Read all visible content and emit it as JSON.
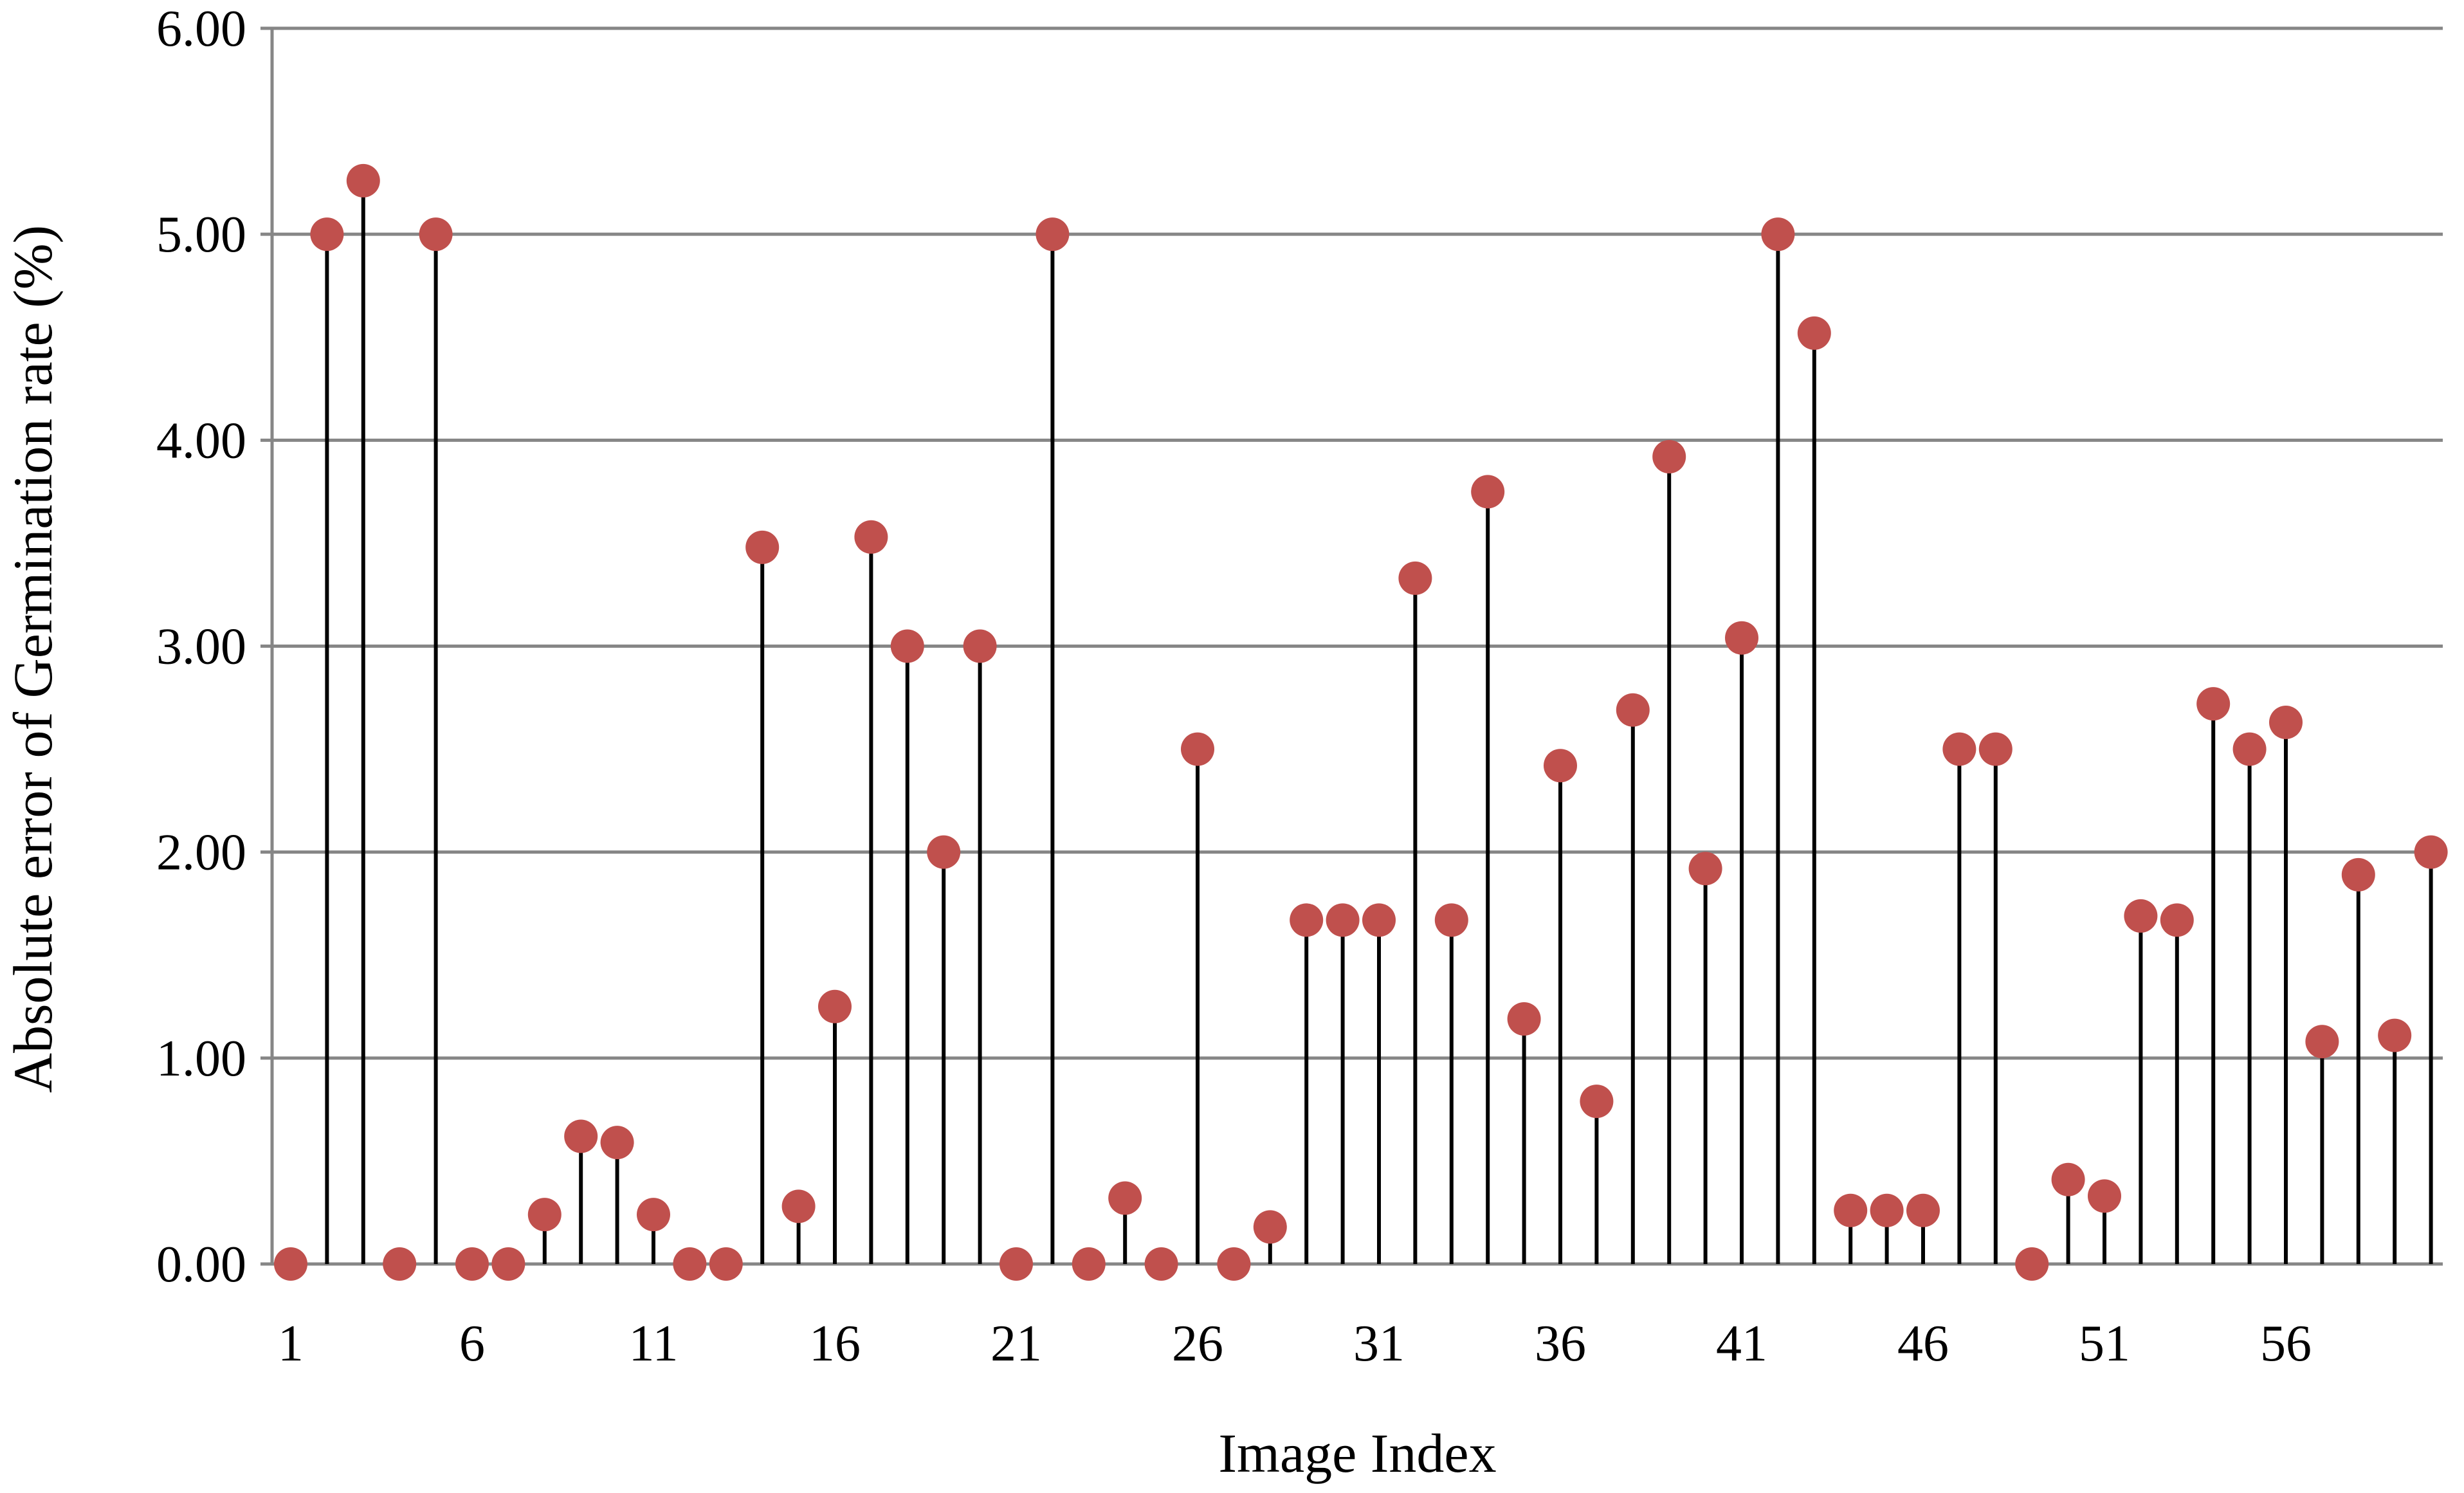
{
  "chart_data": {
    "type": "stem",
    "title": "",
    "xlabel": "Image Index",
    "ylabel": "Absolute error of Germination rate (%)",
    "ylim": [
      0,
      6
    ],
    "yticks": [
      "0.00",
      "1.00",
      "2.00",
      "3.00",
      "4.00",
      "5.00",
      "6.00"
    ],
    "xtick_labels": [
      "1",
      "6",
      "11",
      "16",
      "21",
      "26",
      "31",
      "36",
      "41",
      "46",
      "51",
      "56"
    ],
    "grid": "horizontal",
    "legend": "none",
    "x": [
      1,
      2,
      3,
      4,
      5,
      6,
      7,
      8,
      9,
      10,
      11,
      12,
      13,
      14,
      15,
      16,
      17,
      18,
      19,
      20,
      21,
      22,
      23,
      24,
      25,
      26,
      27,
      28,
      29,
      30,
      31,
      32,
      33,
      34,
      35,
      36,
      37,
      38,
      39,
      40,
      41,
      42,
      43,
      44,
      45,
      46,
      47,
      48,
      49,
      50,
      51,
      52,
      53,
      54,
      55,
      56,
      57,
      58,
      59,
      60
    ],
    "values": [
      0.0,
      5.0,
      5.26,
      0.0,
      5.0,
      0.0,
      0.0,
      0.24,
      0.62,
      0.59,
      0.24,
      0.0,
      0.0,
      3.48,
      0.28,
      1.25,
      3.53,
      3.0,
      2.0,
      3.0,
      0.0,
      5.0,
      0.0,
      0.32,
      0.0,
      2.5,
      0.0,
      0.18,
      1.67,
      1.67,
      1.67,
      3.33,
      1.67,
      3.75,
      1.19,
      2.42,
      0.79,
      2.69,
      3.92,
      1.92,
      3.04,
      5.0,
      4.52,
      0.26,
      0.26,
      0.26,
      2.5,
      2.5,
      0.0,
      0.41,
      0.33,
      1.69,
      1.67,
      2.72,
      2.5,
      2.63,
      1.08,
      1.89,
      1.11,
      2.0
    ],
    "colors": {
      "marker": "#c0504d",
      "stem": "#000000",
      "grid": "#868686"
    }
  }
}
